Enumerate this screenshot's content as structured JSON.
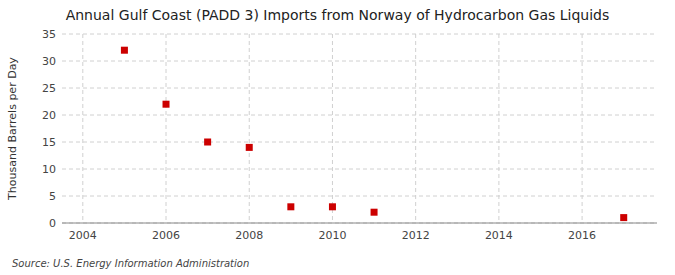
{
  "chart_data": {
    "type": "scatter",
    "title": "Annual Gulf Coast (PADD 3) Imports from Norway of Hydrocarbon Gas Liquids",
    "ylabel": "Thousand Barrels per Day",
    "source": "Source: U.S. Energy Information Administration",
    "x": [
      2005,
      2006,
      2007,
      2008,
      2009,
      2010,
      2011,
      2017
    ],
    "values": [
      32,
      22,
      15,
      14,
      3,
      3,
      2,
      1
    ],
    "color": "#cc0000",
    "marker": "square",
    "xlim": [
      2003.5,
      2017.8
    ],
    "ylim": [
      0,
      35
    ],
    "xticks": [
      2004,
      2006,
      2008,
      2010,
      2012,
      2014,
      2016
    ],
    "yticks": [
      0,
      5,
      10,
      15,
      20,
      25,
      30,
      35
    ],
    "grid": true
  }
}
